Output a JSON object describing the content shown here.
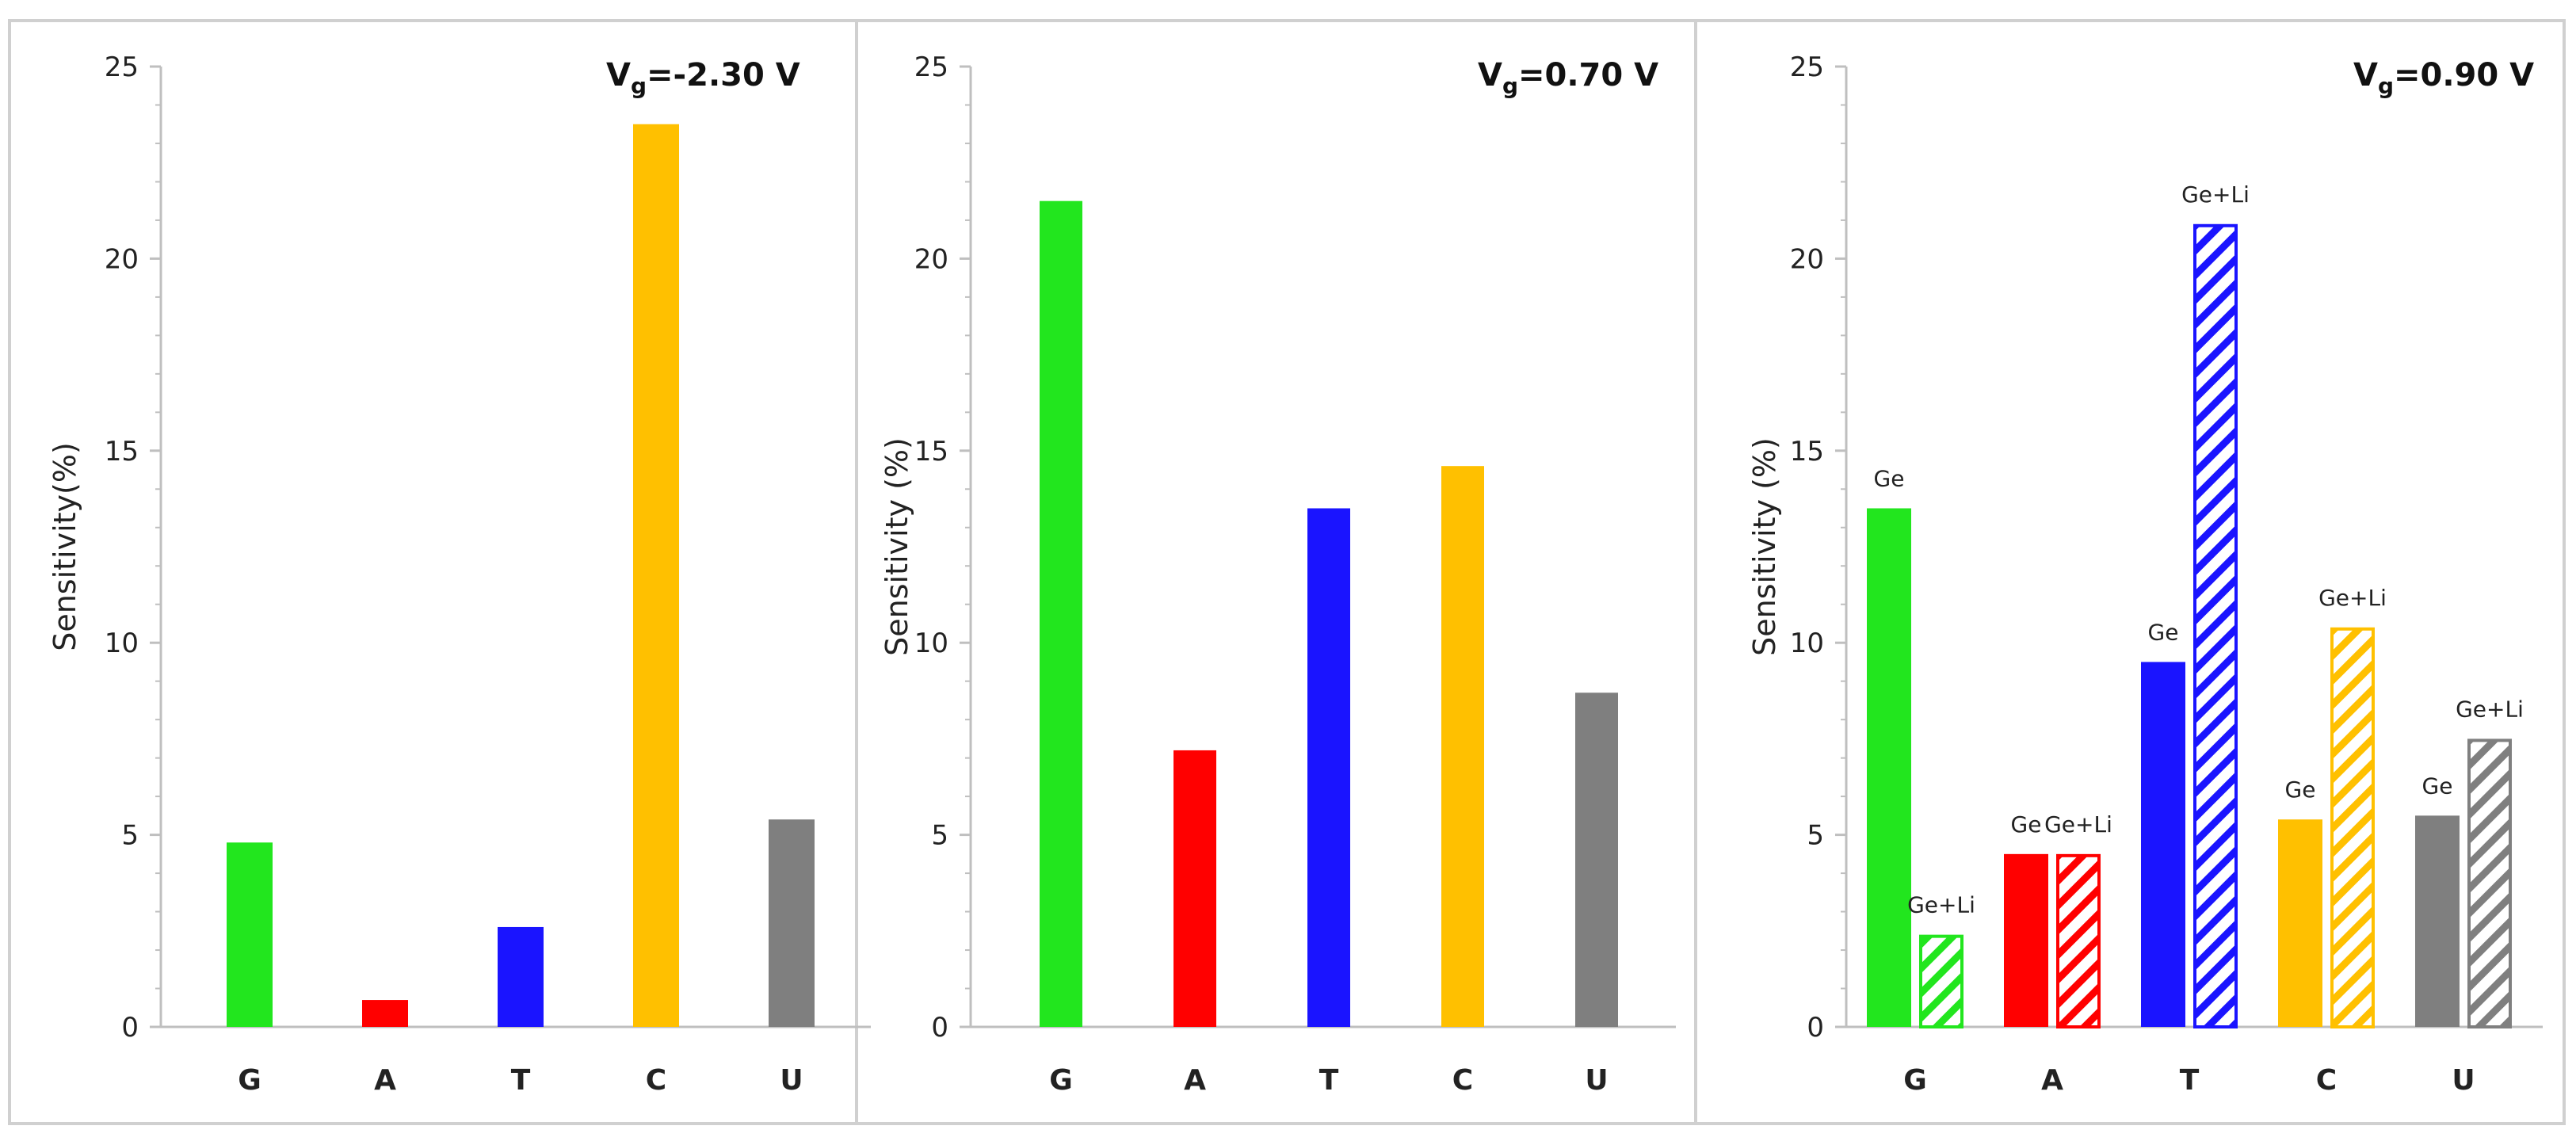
{
  "colors": {
    "G": "#22e61e",
    "A": "#ff0000",
    "T": "#1a14ff",
    "C": "#ffc000",
    "U": "#7f7f7f"
  },
  "chart_data": [
    {
      "type": "bar",
      "title": "",
      "vg_prefix": "V",
      "vg_sub": "g",
      "vg_value": "=-2.30 V",
      "xlabel": "",
      "ylabel": "Sensitivity(%)",
      "ylim": [
        0,
        25
      ],
      "yticks": [
        "0",
        "5",
        "10",
        "15",
        "20",
        "25"
      ],
      "categories": [
        "G",
        "A",
        "T",
        "C",
        "U"
      ],
      "series": [
        {
          "name": "",
          "pattern": "solid",
          "values": [
            4.8,
            0.7,
            2.6,
            23.5,
            5.4
          ]
        }
      ]
    },
    {
      "type": "bar",
      "title": "",
      "vg_prefix": "V",
      "vg_sub": "g",
      "vg_value": "=0.70 V",
      "xlabel": "",
      "ylabel": "Sensitivity (%)",
      "ylim": [
        0,
        25
      ],
      "yticks": [
        "0",
        "5",
        "10",
        "15",
        "20",
        "25"
      ],
      "categories": [
        "G",
        "A",
        "T",
        "C",
        "U"
      ],
      "series": [
        {
          "name": "",
          "pattern": "solid",
          "values": [
            21.5,
            7.2,
            13.5,
            14.6,
            8.7
          ]
        }
      ]
    },
    {
      "type": "bar",
      "title": "",
      "vg_prefix": "V",
      "vg_sub": "g",
      "vg_value": "=0.90 V",
      "xlabel": "",
      "ylabel": "Sensitivity (%)",
      "ylim": [
        0,
        25
      ],
      "yticks": [
        "0",
        "5",
        "10",
        "15",
        "20",
        "25"
      ],
      "categories": [
        "G",
        "A",
        "T",
        "C",
        "U"
      ],
      "series": [
        {
          "name": "Ge",
          "pattern": "solid",
          "values": [
            13.5,
            4.5,
            9.5,
            5.4,
            5.5
          ]
        },
        {
          "name": "Ge+Li",
          "pattern": "hatched",
          "values": [
            2.4,
            4.5,
            20.9,
            10.4,
            7.5
          ]
        }
      ]
    }
  ]
}
